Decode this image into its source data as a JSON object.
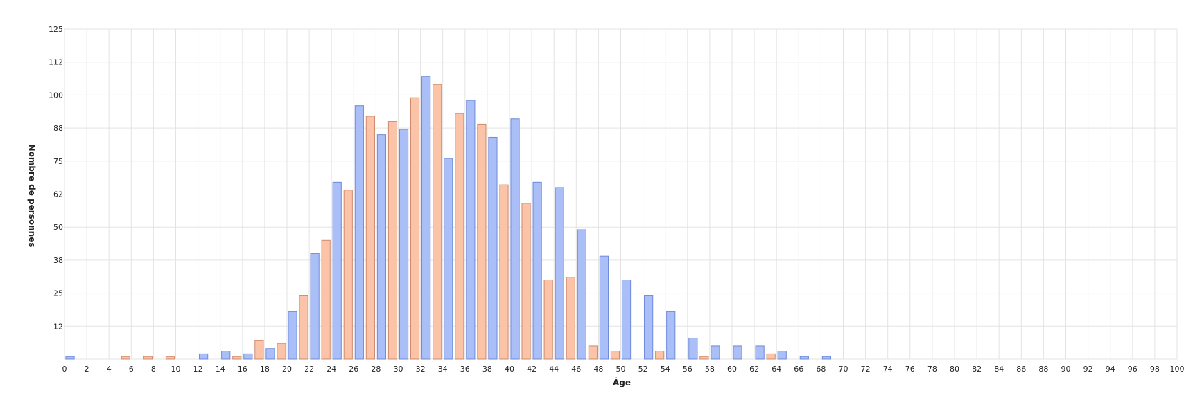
{
  "chart_data": {
    "type": "bar",
    "title": "",
    "xlabel": "Âge",
    "ylabel": "Nombre de personnes",
    "xlim": [
      0,
      100
    ],
    "ylim": [
      0,
      125
    ],
    "x_ticks": [
      "0",
      "2",
      "4",
      "6",
      "8",
      "10",
      "12",
      "14",
      "16",
      "18",
      "20",
      "22",
      "24",
      "26",
      "28",
      "30",
      "32",
      "34",
      "36",
      "38",
      "40",
      "42",
      "44",
      "46",
      "48",
      "50",
      "52",
      "54",
      "56",
      "58",
      "60",
      "62",
      "64",
      "66",
      "68",
      "70",
      "72",
      "74",
      "76",
      "78",
      "80",
      "82",
      "84",
      "86",
      "88",
      "90",
      "92",
      "94",
      "96",
      "98",
      "100"
    ],
    "y_ticks": [
      "12",
      "25",
      "38",
      "50",
      "62",
      "75",
      "88",
      "100",
      "112",
      "125"
    ],
    "grid": true,
    "colors": {
      "series_a_fill": "#aabff7",
      "series_a_stroke": "#6f8ad8",
      "series_b_fill": "#fbc3a7",
      "series_b_stroke": "#d08a6d"
    },
    "series": [
      {
        "x": [
          0,
          12,
          14,
          16,
          18,
          20,
          22,
          24,
          26,
          28,
          30,
          32,
          34,
          36,
          38,
          40,
          42,
          44,
          46,
          48,
          50,
          52,
          54,
          56,
          58,
          60,
          62,
          64,
          66,
          68
        ],
        "values": [
          1,
          2,
          3,
          2,
          4,
          18,
          40,
          67,
          96,
          85,
          87,
          107,
          76,
          98,
          84,
          91,
          67,
          65,
          49,
          39,
          30,
          24,
          18,
          8,
          5,
          5,
          5,
          3,
          1,
          1
        ]
      },
      {
        "x": [
          5,
          7,
          9,
          15,
          17,
          19,
          21,
          23,
          25,
          27,
          29,
          31,
          33,
          35,
          37,
          39,
          41,
          43,
          45,
          47,
          49,
          53,
          57,
          63
        ],
        "values": [
          1,
          1,
          1,
          1,
          7,
          6,
          24,
          45,
          64,
          92,
          90,
          99,
          104,
          93,
          89,
          66,
          59,
          30,
          31,
          5,
          3,
          3,
          1,
          2
        ]
      }
    ]
  }
}
